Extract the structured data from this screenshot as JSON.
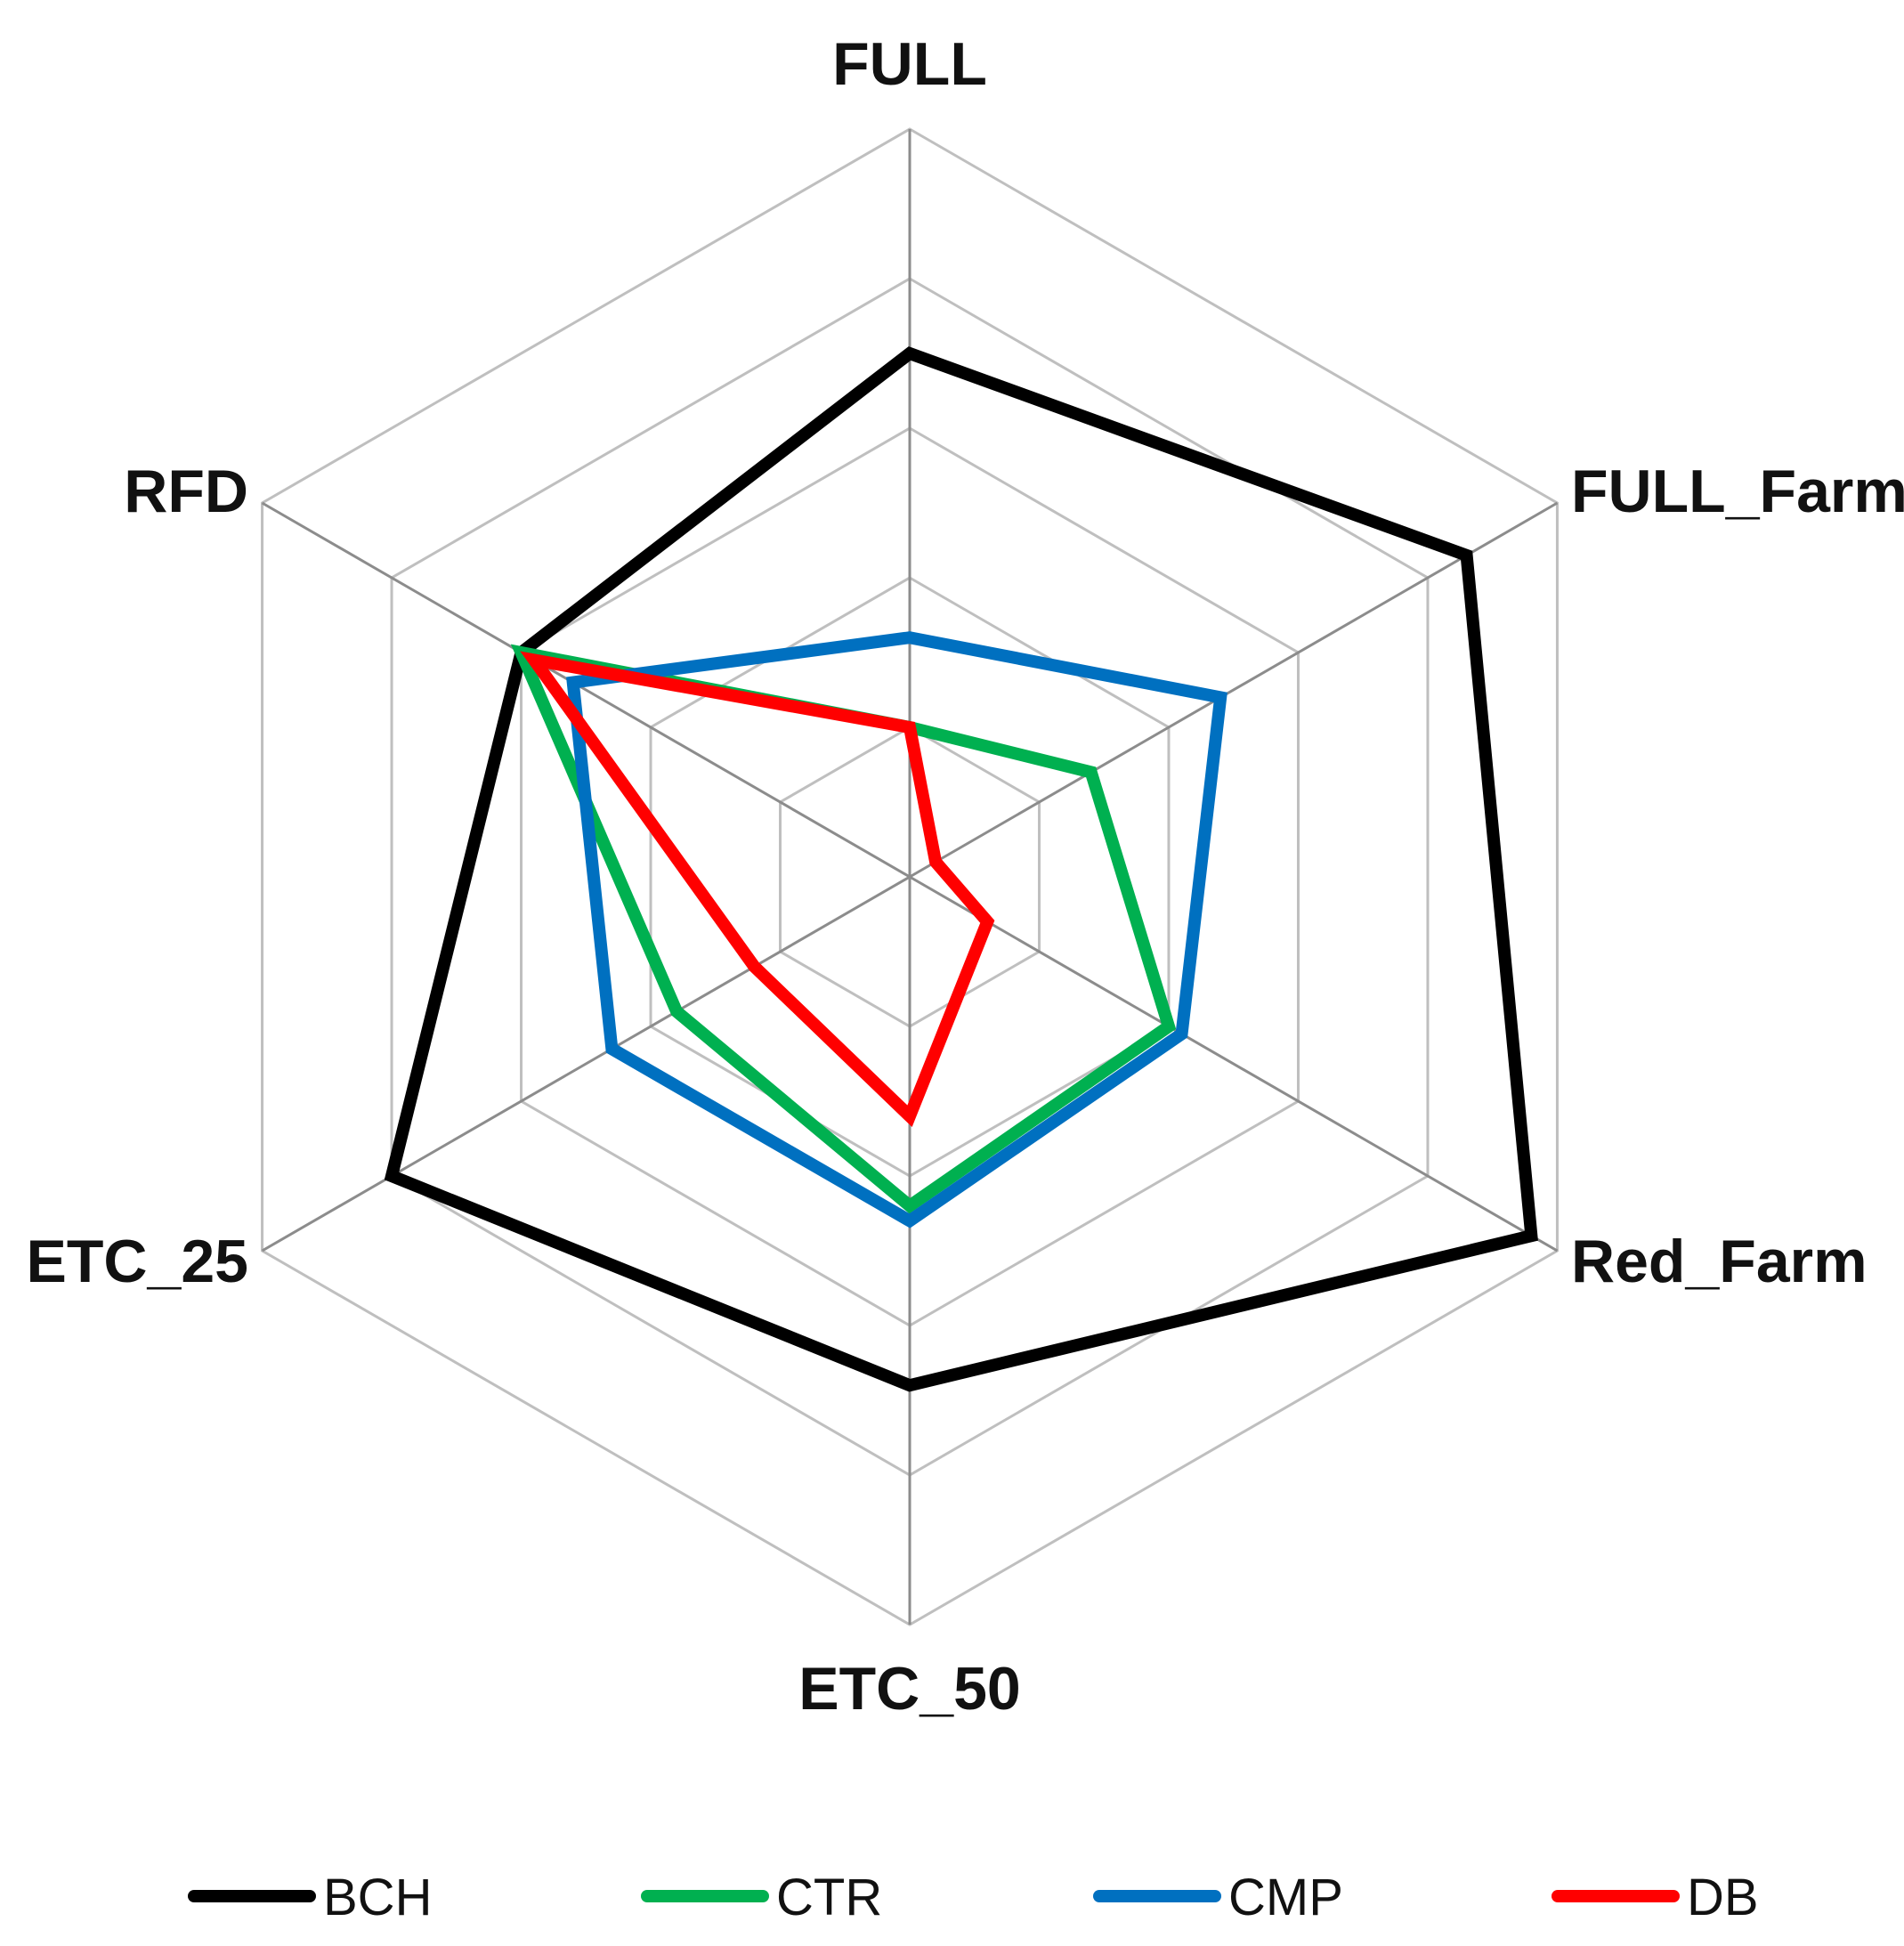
{
  "chart_data": {
    "type": "radar",
    "axes": [
      "FULL",
      "FULL_Farm",
      "Red_Farm",
      "ETC_50",
      "ETC_25",
      "RFD"
    ],
    "rmin": 0,
    "rmax": 5,
    "rings": 5,
    "grid": true,
    "legend_position": "bottom",
    "series": [
      {
        "name": "BCH",
        "color": "#000000",
        "values": [
          3.5,
          4.3,
          4.8,
          3.4,
          4.0,
          3.0
        ]
      },
      {
        "name": "CTR",
        "color": "#00B050",
        "values": [
          1.0,
          1.4,
          2.0,
          2.2,
          1.8,
          3.0
        ]
      },
      {
        "name": "CMP",
        "color": "#0070C0",
        "values": [
          1.6,
          2.4,
          2.1,
          2.3,
          2.3,
          2.6
        ]
      },
      {
        "name": "DB",
        "color": "#FF0000",
        "values": [
          1.0,
          0.2,
          0.6,
          1.6,
          1.2,
          2.9
        ]
      }
    ]
  }
}
